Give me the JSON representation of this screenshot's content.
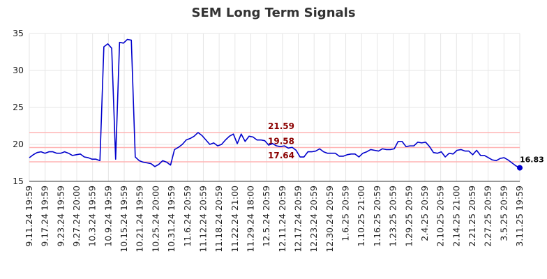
{
  "chart_data": {
    "type": "line",
    "title": "SEM Long Term Signals",
    "xlabel": "",
    "ylabel": "",
    "ylim": [
      15,
      35
    ],
    "y_ticks": [
      15,
      20,
      25,
      30,
      35
    ],
    "x_tick_labels": [
      "9.11.24 19:59",
      "9.17.24 19:59",
      "9.23.24 19:59",
      "9.27.24 20:00",
      "10.3.24 19:59",
      "10.9.24 19:59",
      "10.15.24 19:59",
      "10.21.24 19:59",
      "10.25.24 20:00",
      "10.31.24 19:59",
      "11.6.24 20:59",
      "11.12.24 20:59",
      "11.18.24 20:59",
      "11.22.24 21:00",
      "11.29.24 18:00",
      "12.5.24 20:59",
      "12.11.24 20:59",
      "12.17.24 20:59",
      "12.23.24 20:59",
      "12.30.24 20:59",
      "1.6.25 20:59",
      "1.10.25 21:00",
      "1.16.25 20:59",
      "1.23.25 20:59",
      "1.29.25 20:59",
      "2.4.25 20:59",
      "2.10.25 20:59",
      "2.14.25 21:00",
      "2.21.25 20:59",
      "2.27.25 20:59",
      "3.5.25 20:59",
      "3.11.25 19:59"
    ],
    "grid": true,
    "line_color": "#0000cc",
    "reference_line_color": "#ffb3b3",
    "reference_label_color": "#8b0000",
    "reference_lines": [
      {
        "value": 21.59,
        "label": "21.59"
      },
      {
        "value": 19.58,
        "label": "19.58"
      },
      {
        "value": 17.64,
        "label": "17.64"
      }
    ],
    "last_value_label": "16.83",
    "series": [
      {
        "values": [
          18.2,
          18.6,
          18.9,
          19.0,
          18.8,
          19.0,
          19.0,
          18.8,
          18.8,
          19.0,
          18.8,
          18.5,
          18.6,
          18.7,
          18.3,
          18.2,
          18.0,
          18.0,
          17.8,
          33.2,
          33.6,
          33.0,
          18.0,
          33.8,
          33.7,
          34.2,
          34.1,
          18.3,
          17.8,
          17.6,
          17.5,
          17.4,
          17.0,
          17.3,
          17.8,
          17.6,
          17.2,
          19.3,
          19.6,
          20.0,
          20.6,
          20.8,
          21.1,
          21.6,
          21.2,
          20.6,
          20.0,
          20.2,
          19.8,
          20.0,
          20.6,
          21.1,
          21.4,
          20.1,
          21.4,
          20.4,
          21.1,
          21.0,
          20.6,
          20.6,
          20.5,
          19.9,
          20.1,
          19.8,
          19.7,
          19.8,
          19.5,
          19.6,
          19.2,
          18.3,
          18.3,
          19.0,
          19.0,
          19.1,
          19.4,
          19.0,
          18.8,
          18.8,
          18.8,
          18.4,
          18.4,
          18.6,
          18.7,
          18.7,
          18.3,
          18.8,
          19.0,
          19.3,
          19.2,
          19.1,
          19.4,
          19.3,
          19.3,
          19.4,
          20.4,
          20.4,
          19.7,
          19.8,
          19.8,
          20.3,
          20.2,
          20.3,
          19.7,
          18.9,
          18.8,
          19.0,
          18.3,
          18.8,
          18.7,
          19.2,
          19.3,
          19.1,
          19.1,
          18.6,
          19.2,
          18.5,
          18.5,
          18.2,
          17.9,
          17.8,
          18.1,
          18.2,
          17.9,
          17.5,
          17.1,
          16.83
        ]
      }
    ]
  }
}
